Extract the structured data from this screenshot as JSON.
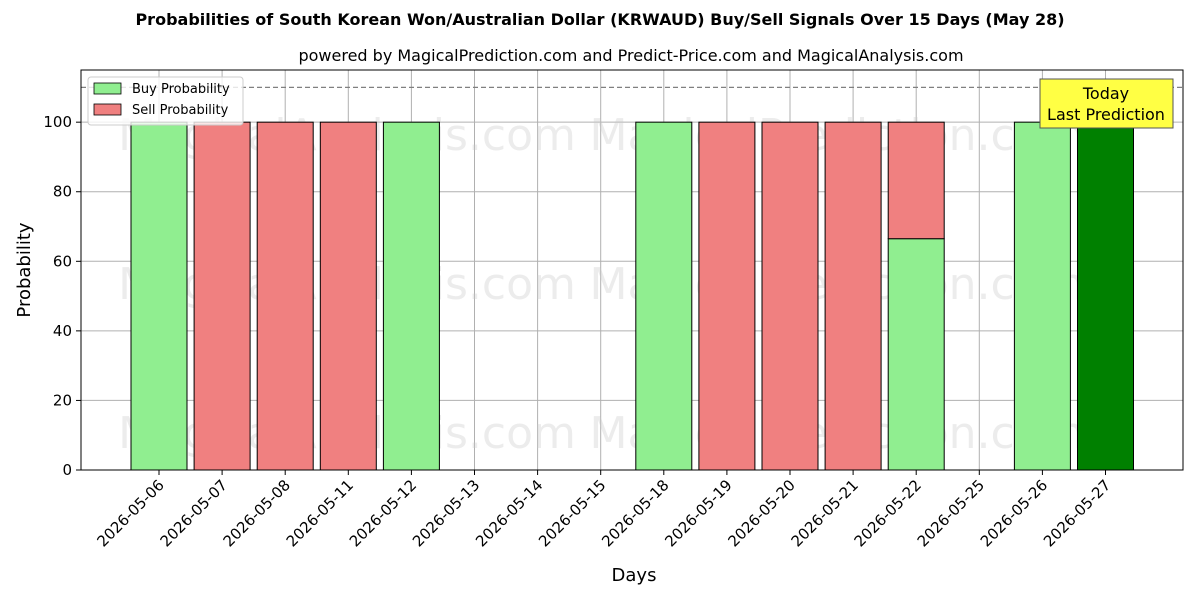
{
  "title": "Probabilities of South Korean Won/Australian Dollar (KRWAUD) Buy/Sell Signals Over 15 Days (May 28)",
  "subtitle": "powered by MagicalPrediction.com and Predict-Price.com and MagicalAnalysis.com",
  "watermarks": [
    "MagicalAnalysis.com",
    "MagicalPrediction.com"
  ],
  "today_box": {
    "line1": "Today",
    "line2": "Last Prediction",
    "color": "#ffff44"
  },
  "chart_data": {
    "type": "bar",
    "stacked": true,
    "xlabel": "Days",
    "ylabel": "Probability",
    "ylim": [
      0,
      115
    ],
    "yticks": [
      0,
      20,
      40,
      60,
      80,
      100
    ],
    "reference_line": 110,
    "grid": true,
    "legend_position": "top-left",
    "categories": [
      "2026-05-06",
      "2026-05-07",
      "2026-05-08",
      "2026-05-11",
      "2026-05-12",
      "2026-05-13",
      "2026-05-14",
      "2026-05-15",
      "2026-05-18",
      "2026-05-19",
      "2026-05-20",
      "2026-05-21",
      "2026-05-22",
      "2026-05-25",
      "2026-05-26",
      "2026-05-27"
    ],
    "series": [
      {
        "name": "Buy Probability",
        "color": "#90ee90",
        "values": [
          100,
          0,
          0,
          0,
          100,
          0,
          0,
          0,
          100,
          0,
          0,
          0,
          66.5,
          0,
          100,
          100
        ]
      },
      {
        "name": "Sell Probability",
        "color": "#f08080",
        "values": [
          0,
          100,
          100,
          100,
          0,
          0,
          0,
          0,
          0,
          100,
          100,
          100,
          33.5,
          0,
          0,
          0
        ]
      }
    ],
    "highlight": {
      "category": "2026-05-27",
      "color": "#008000"
    }
  }
}
